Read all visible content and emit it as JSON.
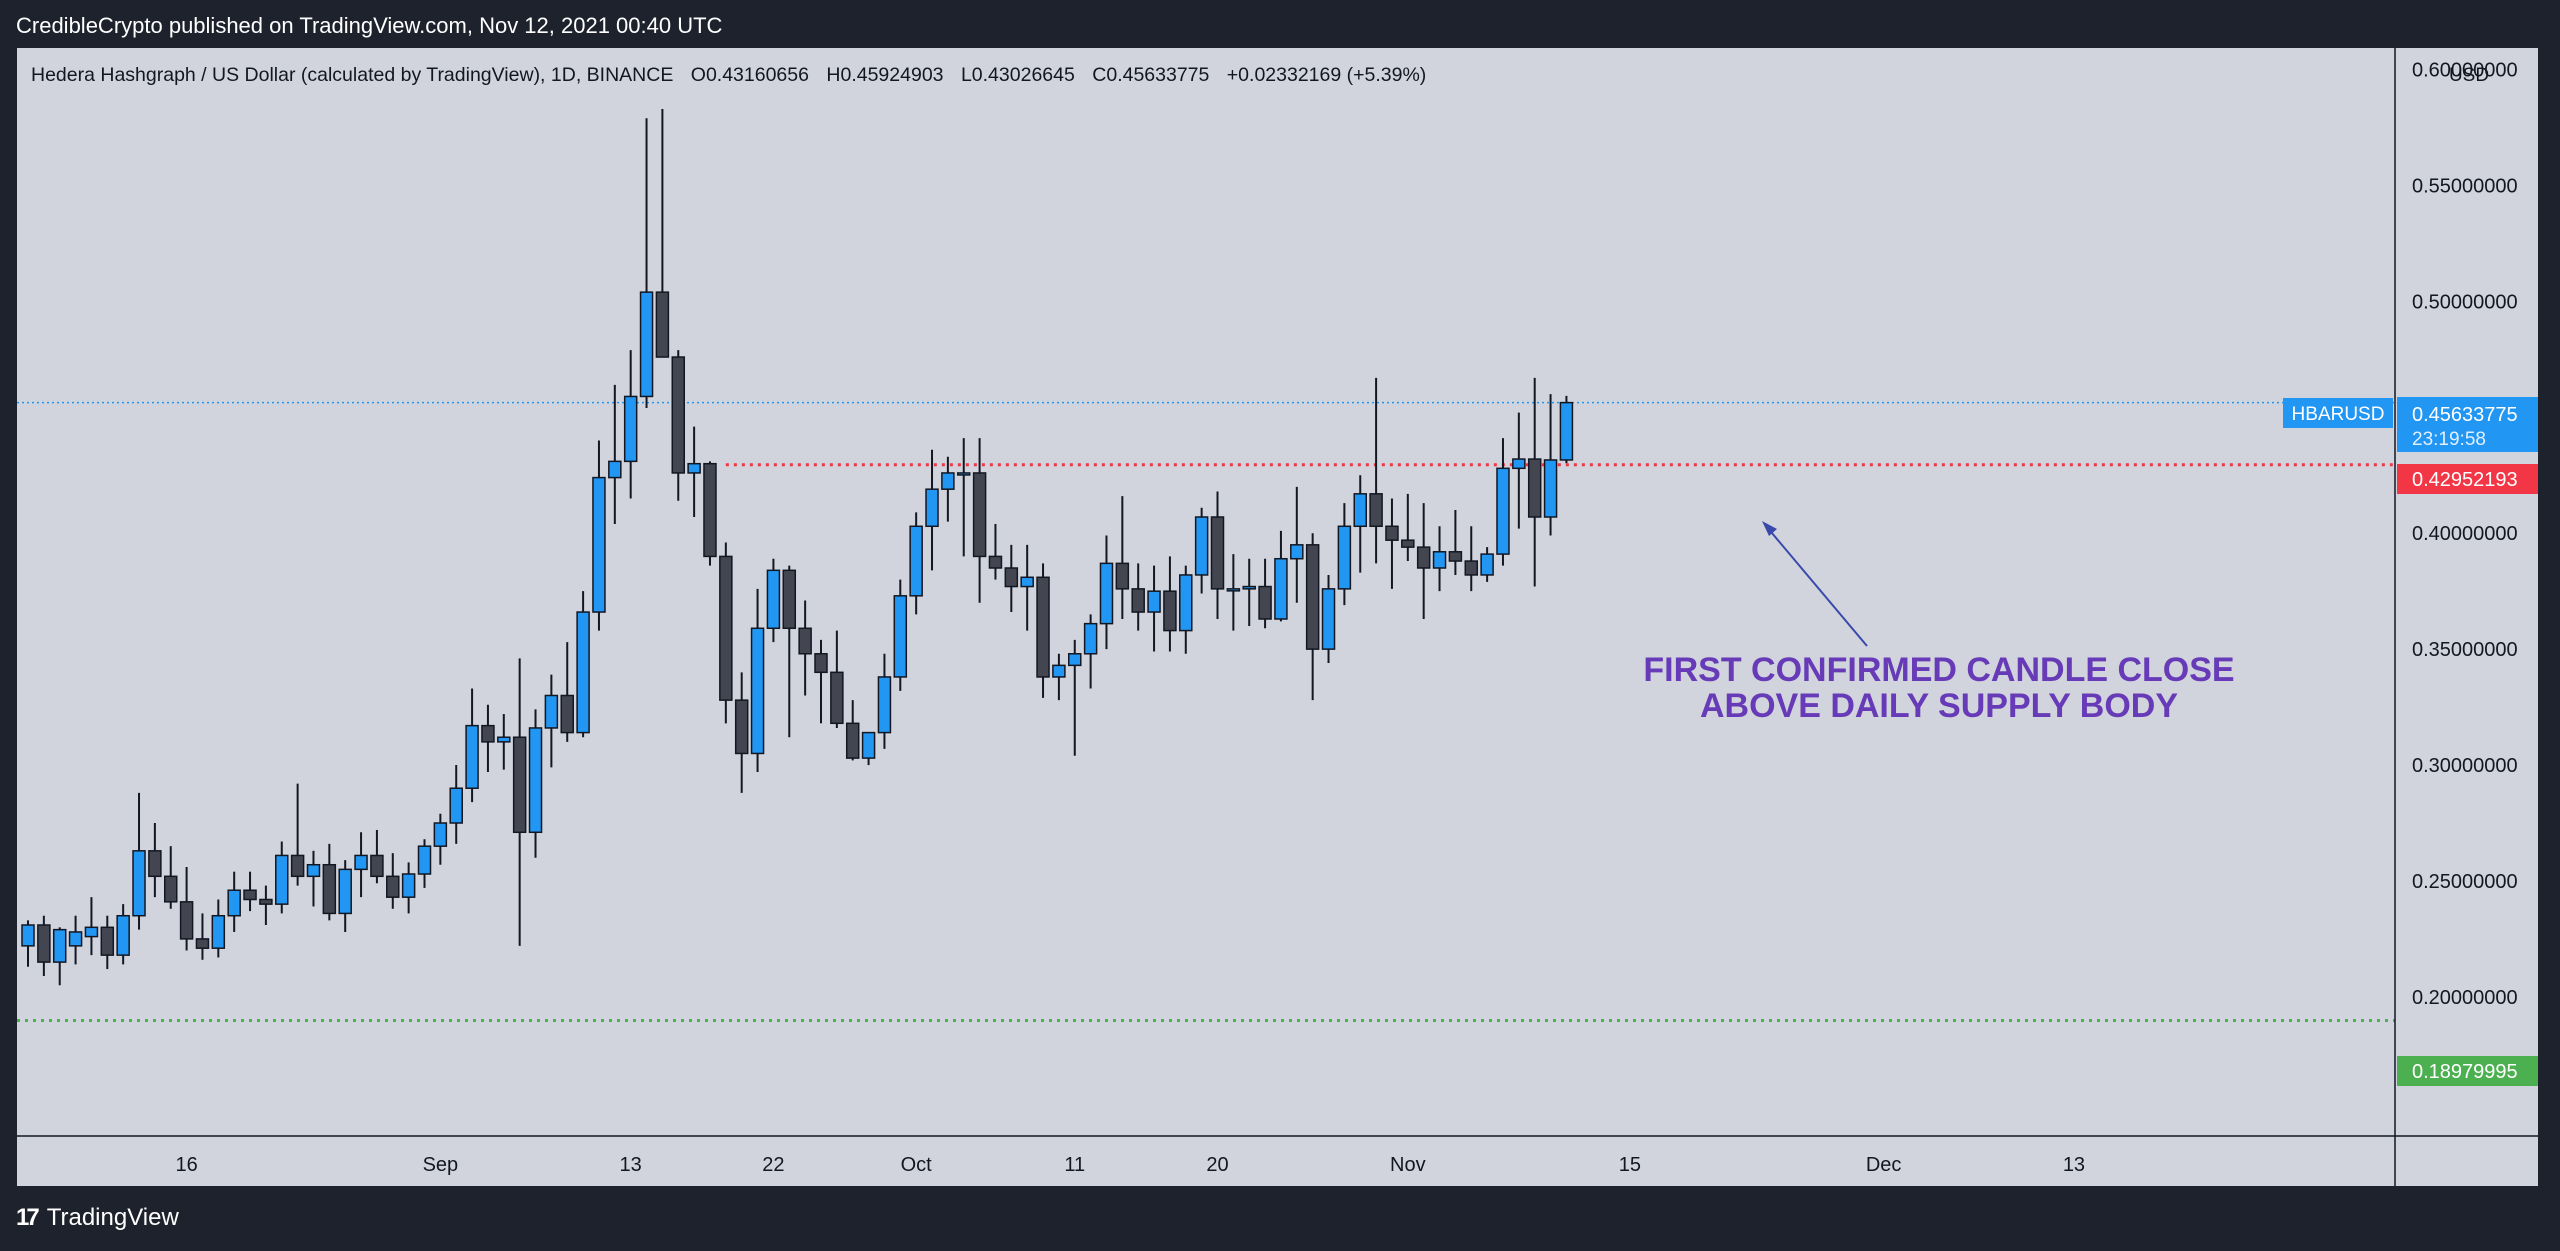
{
  "header": {
    "published": "CredibleCrypto published on TradingView.com, Nov 12, 2021 00:40 UTC"
  },
  "legend": {
    "symbol": "Hedera Hashgraph / US Dollar (calculated by TradingView), 1D, BINANCE",
    "o_label": "O",
    "o_value": "0.43160656",
    "h_label": "H",
    "h_value": "0.45924903",
    "l_label": "L",
    "l_value": "0.43026645",
    "c_label": "C",
    "c_value": "0.45633775",
    "change": "+0.02332169 (+5.39%)"
  },
  "price_axis": {
    "currency": "USD"
  },
  "symbol_tag": "HBARUSD",
  "last_price": {
    "value": "0.45633775",
    "countdown": "23:19:58"
  },
  "level_labels": {
    "resistance": "0.42952193",
    "support": "0.18979995"
  },
  "annotation": {
    "line1": "FIRST CONFIRMED CANDLE CLOSE",
    "line2": "ABOVE DAILY SUPPLY BODY"
  },
  "footer": {
    "brand": "TradingView"
  },
  "colors": {
    "up": "#2196f3",
    "down": "#434651",
    "outline": "#131722",
    "resistance": "#f23645",
    "support": "#4caf50",
    "annotation": "#673ab7",
    "last_price_line": "#2196f3",
    "background": "#d1d4dc"
  },
  "chart_data": {
    "type": "candlestick",
    "title": "Hedera Hashgraph / US Dollar (calculated by TradingView), 1D, BINANCE",
    "ylabel": "USD",
    "ylim": [
      0.165,
      0.605
    ],
    "y_ticks": [
      0.2,
      0.25,
      0.3,
      0.35,
      0.4,
      0.45,
      0.5,
      0.55,
      0.6
    ],
    "y_tick_labels": [
      "0.20000000",
      "0.25000000",
      "0.30000000",
      "0.35000000",
      "0.40000000",
      "",
      "0.50000000",
      "0.55000000",
      "0.60000000"
    ],
    "x_ticks": [
      "16",
      "Sep",
      "13",
      "22",
      "Oct",
      "11",
      "20",
      "Nov",
      "15",
      "Dec",
      "13"
    ],
    "x_tick_dates": [
      "2021-08-16",
      "2021-09-01",
      "2021-09-13",
      "2021-09-22",
      "2021-10-01",
      "2021-10-11",
      "2021-10-20",
      "2021-11-01",
      "2021-11-15",
      "2021-12-01",
      "2021-12-13"
    ],
    "x_range": [
      "2021-08-06",
      "2021-12-25"
    ],
    "horizontal_lines": [
      {
        "value": 0.45633775,
        "style": "dotted-blue"
      },
      {
        "value": 0.42952193,
        "style": "dotted-red",
        "start": "2021-09-19"
      },
      {
        "value": 0.18979995,
        "style": "dotted-green"
      }
    ],
    "candles": [
      {
        "date": "2021-08-06",
        "o": 0.222,
        "h": 0.233,
        "l": 0.213,
        "c": 0.231
      },
      {
        "date": "2021-08-07",
        "o": 0.231,
        "h": 0.235,
        "l": 0.209,
        "c": 0.215
      },
      {
        "date": "2021-08-08",
        "o": 0.215,
        "h": 0.23,
        "l": 0.205,
        "c": 0.229
      },
      {
        "date": "2021-08-09",
        "o": 0.222,
        "h": 0.235,
        "l": 0.214,
        "c": 0.228
      },
      {
        "date": "2021-08-10",
        "o": 0.226,
        "h": 0.243,
        "l": 0.218,
        "c": 0.23
      },
      {
        "date": "2021-08-11",
        "o": 0.23,
        "h": 0.235,
        "l": 0.212,
        "c": 0.218
      },
      {
        "date": "2021-08-12",
        "o": 0.218,
        "h": 0.24,
        "l": 0.214,
        "c": 0.235
      },
      {
        "date": "2021-08-13",
        "o": 0.235,
        "h": 0.288,
        "l": 0.229,
        "c": 0.263
      },
      {
        "date": "2021-08-14",
        "o": 0.263,
        "h": 0.275,
        "l": 0.243,
        "c": 0.252
      },
      {
        "date": "2021-08-15",
        "o": 0.252,
        "h": 0.265,
        "l": 0.238,
        "c": 0.241
      },
      {
        "date": "2021-08-16",
        "o": 0.241,
        "h": 0.256,
        "l": 0.22,
        "c": 0.225
      },
      {
        "date": "2021-08-17",
        "o": 0.225,
        "h": 0.236,
        "l": 0.216,
        "c": 0.221
      },
      {
        "date": "2021-08-18",
        "o": 0.221,
        "h": 0.242,
        "l": 0.217,
        "c": 0.235
      },
      {
        "date": "2021-08-19",
        "o": 0.235,
        "h": 0.254,
        "l": 0.228,
        "c": 0.246
      },
      {
        "date": "2021-08-20",
        "o": 0.246,
        "h": 0.254,
        "l": 0.237,
        "c": 0.242
      },
      {
        "date": "2021-08-21",
        "o": 0.242,
        "h": 0.248,
        "l": 0.231,
        "c": 0.24
      },
      {
        "date": "2021-08-22",
        "o": 0.24,
        "h": 0.267,
        "l": 0.236,
        "c": 0.261
      },
      {
        "date": "2021-08-23",
        "o": 0.261,
        "h": 0.292,
        "l": 0.248,
        "c": 0.252
      },
      {
        "date": "2021-08-24",
        "o": 0.252,
        "h": 0.263,
        "l": 0.239,
        "c": 0.257
      },
      {
        "date": "2021-08-25",
        "o": 0.257,
        "h": 0.266,
        "l": 0.233,
        "c": 0.236
      },
      {
        "date": "2021-08-26",
        "o": 0.236,
        "h": 0.259,
        "l": 0.228,
        "c": 0.255
      },
      {
        "date": "2021-08-27",
        "o": 0.255,
        "h": 0.271,
        "l": 0.243,
        "c": 0.261
      },
      {
        "date": "2021-08-28",
        "o": 0.261,
        "h": 0.272,
        "l": 0.249,
        "c": 0.252
      },
      {
        "date": "2021-08-29",
        "o": 0.252,
        "h": 0.262,
        "l": 0.238,
        "c": 0.243
      },
      {
        "date": "2021-08-30",
        "o": 0.243,
        "h": 0.258,
        "l": 0.236,
        "c": 0.253
      },
      {
        "date": "2021-08-31",
        "o": 0.253,
        "h": 0.268,
        "l": 0.247,
        "c": 0.265
      },
      {
        "date": "2021-09-01",
        "o": 0.265,
        "h": 0.279,
        "l": 0.257,
        "c": 0.275
      },
      {
        "date": "2021-09-02",
        "o": 0.275,
        "h": 0.3,
        "l": 0.266,
        "c": 0.29
      },
      {
        "date": "2021-09-03",
        "o": 0.29,
        "h": 0.333,
        "l": 0.284,
        "c": 0.317
      },
      {
        "date": "2021-09-04",
        "o": 0.317,
        "h": 0.326,
        "l": 0.297,
        "c": 0.31
      },
      {
        "date": "2021-09-05",
        "o": 0.31,
        "h": 0.322,
        "l": 0.298,
        "c": 0.312
      },
      {
        "date": "2021-09-06",
        "o": 0.312,
        "h": 0.346,
        "l": 0.222,
        "c": 0.271
      },
      {
        "date": "2021-09-07",
        "o": 0.271,
        "h": 0.324,
        "l": 0.26,
        "c": 0.316
      },
      {
        "date": "2021-09-08",
        "o": 0.316,
        "h": 0.339,
        "l": 0.299,
        "c": 0.33
      },
      {
        "date": "2021-09-09",
        "o": 0.33,
        "h": 0.353,
        "l": 0.31,
        "c": 0.314
      },
      {
        "date": "2021-09-10",
        "o": 0.314,
        "h": 0.375,
        "l": 0.312,
        "c": 0.366
      },
      {
        "date": "2021-09-11",
        "o": 0.366,
        "h": 0.44,
        "l": 0.358,
        "c": 0.424
      },
      {
        "date": "2021-09-12",
        "o": 0.424,
        "h": 0.464,
        "l": 0.404,
        "c": 0.431
      },
      {
        "date": "2021-09-13",
        "o": 0.431,
        "h": 0.479,
        "l": 0.415,
        "c": 0.459
      },
      {
        "date": "2021-09-14",
        "o": 0.459,
        "h": 0.579,
        "l": 0.454,
        "c": 0.504
      },
      {
        "date": "2021-09-15",
        "o": 0.504,
        "h": 0.583,
        "l": 0.476,
        "c": 0.476
      },
      {
        "date": "2021-09-16",
        "o": 0.476,
        "h": 0.479,
        "l": 0.414,
        "c": 0.426
      },
      {
        "date": "2021-09-17",
        "o": 0.426,
        "h": 0.446,
        "l": 0.407,
        "c": 0.43
      },
      {
        "date": "2021-09-18",
        "o": 0.43,
        "h": 0.431,
        "l": 0.386,
        "c": 0.39
      },
      {
        "date": "2021-09-19",
        "o": 0.39,
        "h": 0.396,
        "l": 0.318,
        "c": 0.328
      },
      {
        "date": "2021-09-20",
        "o": 0.328,
        "h": 0.34,
        "l": 0.288,
        "c": 0.305
      },
      {
        "date": "2021-09-21",
        "o": 0.305,
        "h": 0.376,
        "l": 0.297,
        "c": 0.359
      },
      {
        "date": "2021-09-22",
        "o": 0.359,
        "h": 0.389,
        "l": 0.353,
        "c": 0.384
      },
      {
        "date": "2021-09-23",
        "o": 0.384,
        "h": 0.386,
        "l": 0.312,
        "c": 0.359
      },
      {
        "date": "2021-09-24",
        "o": 0.359,
        "h": 0.371,
        "l": 0.33,
        "c": 0.348
      },
      {
        "date": "2021-09-25",
        "o": 0.348,
        "h": 0.354,
        "l": 0.318,
        "c": 0.34
      },
      {
        "date": "2021-09-26",
        "o": 0.34,
        "h": 0.358,
        "l": 0.316,
        "c": 0.318
      },
      {
        "date": "2021-09-27",
        "o": 0.318,
        "h": 0.328,
        "l": 0.302,
        "c": 0.303
      },
      {
        "date": "2021-09-28",
        "o": 0.303,
        "h": 0.314,
        "l": 0.3,
        "c": 0.314
      },
      {
        "date": "2021-09-29",
        "o": 0.314,
        "h": 0.348,
        "l": 0.307,
        "c": 0.338
      },
      {
        "date": "2021-09-30",
        "o": 0.338,
        "h": 0.38,
        "l": 0.332,
        "c": 0.373
      },
      {
        "date": "2021-10-01",
        "o": 0.373,
        "h": 0.409,
        "l": 0.365,
        "c": 0.403
      },
      {
        "date": "2021-10-02",
        "o": 0.403,
        "h": 0.436,
        "l": 0.384,
        "c": 0.419
      },
      {
        "date": "2021-10-03",
        "o": 0.419,
        "h": 0.433,
        "l": 0.405,
        "c": 0.426
      },
      {
        "date": "2021-10-04",
        "o": 0.426,
        "h": 0.441,
        "l": 0.39,
        "c": 0.426
      },
      {
        "date": "2021-10-05",
        "o": 0.426,
        "h": 0.441,
        "l": 0.37,
        "c": 0.39
      },
      {
        "date": "2021-10-06",
        "o": 0.39,
        "h": 0.404,
        "l": 0.38,
        "c": 0.385
      },
      {
        "date": "2021-10-07",
        "o": 0.385,
        "h": 0.395,
        "l": 0.366,
        "c": 0.377
      },
      {
        "date": "2021-10-08",
        "o": 0.377,
        "h": 0.395,
        "l": 0.358,
        "c": 0.381
      },
      {
        "date": "2021-10-09",
        "o": 0.381,
        "h": 0.387,
        "l": 0.329,
        "c": 0.338
      },
      {
        "date": "2021-10-10",
        "o": 0.338,
        "h": 0.348,
        "l": 0.328,
        "c": 0.343
      },
      {
        "date": "2021-10-11",
        "o": 0.343,
        "h": 0.354,
        "l": 0.304,
        "c": 0.348
      },
      {
        "date": "2021-10-12",
        "o": 0.348,
        "h": 0.365,
        "l": 0.333,
        "c": 0.361
      },
      {
        "date": "2021-10-13",
        "o": 0.361,
        "h": 0.399,
        "l": 0.35,
        "c": 0.387
      },
      {
        "date": "2021-10-14",
        "o": 0.387,
        "h": 0.416,
        "l": 0.363,
        "c": 0.376
      },
      {
        "date": "2021-10-15",
        "o": 0.376,
        "h": 0.387,
        "l": 0.358,
        "c": 0.366
      },
      {
        "date": "2021-10-16",
        "o": 0.366,
        "h": 0.386,
        "l": 0.349,
        "c": 0.375
      },
      {
        "date": "2021-10-17",
        "o": 0.375,
        "h": 0.39,
        "l": 0.349,
        "c": 0.358
      },
      {
        "date": "2021-10-18",
        "o": 0.358,
        "h": 0.386,
        "l": 0.348,
        "c": 0.382
      },
      {
        "date": "2021-10-19",
        "o": 0.382,
        "h": 0.411,
        "l": 0.374,
        "c": 0.407
      },
      {
        "date": "2021-10-20",
        "o": 0.407,
        "h": 0.418,
        "l": 0.363,
        "c": 0.376
      },
      {
        "date": "2021-10-21",
        "o": 0.376,
        "h": 0.391,
        "l": 0.358,
        "c": 0.376
      },
      {
        "date": "2021-10-22",
        "o": 0.376,
        "h": 0.389,
        "l": 0.36,
        "c": 0.377
      },
      {
        "date": "2021-10-23",
        "o": 0.377,
        "h": 0.389,
        "l": 0.359,
        "c": 0.363
      },
      {
        "date": "2021-10-24",
        "o": 0.363,
        "h": 0.401,
        "l": 0.362,
        "c": 0.389
      },
      {
        "date": "2021-10-25",
        "o": 0.389,
        "h": 0.42,
        "l": 0.37,
        "c": 0.395
      },
      {
        "date": "2021-10-26",
        "o": 0.395,
        "h": 0.4,
        "l": 0.328,
        "c": 0.35
      },
      {
        "date": "2021-10-27",
        "o": 0.35,
        "h": 0.382,
        "l": 0.344,
        "c": 0.376
      },
      {
        "date": "2021-10-28",
        "o": 0.376,
        "h": 0.413,
        "l": 0.369,
        "c": 0.403
      },
      {
        "date": "2021-10-29",
        "o": 0.403,
        "h": 0.425,
        "l": 0.383,
        "c": 0.417
      },
      {
        "date": "2021-10-30",
        "o": 0.417,
        "h": 0.467,
        "l": 0.387,
        "c": 0.403
      },
      {
        "date": "2021-10-31",
        "o": 0.403,
        "h": 0.415,
        "l": 0.376,
        "c": 0.397
      },
      {
        "date": "2021-11-01",
        "o": 0.397,
        "h": 0.417,
        "l": 0.388,
        "c": 0.394
      },
      {
        "date": "2021-11-02",
        "o": 0.394,
        "h": 0.413,
        "l": 0.363,
        "c": 0.385
      },
      {
        "date": "2021-11-03",
        "o": 0.385,
        "h": 0.403,
        "l": 0.375,
        "c": 0.392
      },
      {
        "date": "2021-11-04",
        "o": 0.392,
        "h": 0.41,
        "l": 0.382,
        "c": 0.388
      },
      {
        "date": "2021-11-05",
        "o": 0.388,
        "h": 0.403,
        "l": 0.375,
        "c": 0.382
      },
      {
        "date": "2021-11-06",
        "o": 0.382,
        "h": 0.394,
        "l": 0.379,
        "c": 0.391
      },
      {
        "date": "2021-11-07",
        "o": 0.391,
        "h": 0.441,
        "l": 0.386,
        "c": 0.428
      },
      {
        "date": "2021-11-08",
        "o": 0.428,
        "h": 0.452,
        "l": 0.402,
        "c": 0.432
      },
      {
        "date": "2021-11-09",
        "o": 0.432,
        "h": 0.467,
        "l": 0.377,
        "c": 0.407
      },
      {
        "date": "2021-11-10",
        "o": 0.407,
        "h": 0.46,
        "l": 0.399,
        "c": 0.4316
      },
      {
        "date": "2021-11-11",
        "o": 0.43160656,
        "h": 0.45924903,
        "l": 0.43026645,
        "c": 0.45633775
      }
    ]
  }
}
